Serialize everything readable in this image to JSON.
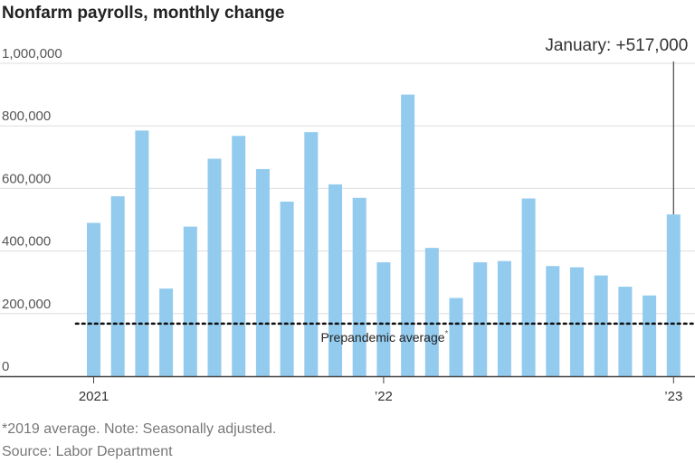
{
  "chart_data": {
    "type": "bar",
    "title": "Nonfarm payrolls, monthly change",
    "ylim": [
      0,
      1000000
    ],
    "yticks": [
      {
        "value": 0,
        "label": "0"
      },
      {
        "value": 200000,
        "label": "200,000"
      },
      {
        "value": 400000,
        "label": "400,000"
      },
      {
        "value": 600000,
        "label": "600,000"
      },
      {
        "value": 800000,
        "label": "800,000"
      },
      {
        "value": 1000000,
        "label": "1,000,000"
      }
    ],
    "categories": [
      "2021-01",
      "2021-02",
      "2021-03",
      "2021-04",
      "2021-05",
      "2021-06",
      "2021-07",
      "2021-08",
      "2021-09",
      "2021-10",
      "2021-11",
      "2021-12",
      "2022-01",
      "2022-02",
      "2022-03",
      "2022-04",
      "2022-05",
      "2022-06",
      "2022-07",
      "2022-08",
      "2022-09",
      "2022-10",
      "2022-11",
      "2022-12",
      "2023-01"
    ],
    "values": [
      490000,
      575000,
      785000,
      280000,
      478000,
      695000,
      768000,
      662000,
      558000,
      780000,
      613000,
      570000,
      364000,
      900000,
      410000,
      250000,
      364000,
      368000,
      568000,
      352000,
      348000,
      322000,
      286000,
      258000,
      517000
    ],
    "xtick_labels": [
      {
        "category": "2021-01",
        "label": "2021"
      },
      {
        "category": "2022-01",
        "label": "’22"
      },
      {
        "category": "2023-01",
        "label": "’23"
      }
    ],
    "reference_line": {
      "value": 168000,
      "label": "Prepandemic average",
      "marker": "*"
    },
    "annotation": {
      "category": "2023-01",
      "text": "January: +517,000"
    },
    "bar_color": "#93CBEE"
  },
  "footnotes": {
    "note": "*2019 average. Note: Seasonally adjusted.",
    "source": "Source: Labor Department"
  }
}
